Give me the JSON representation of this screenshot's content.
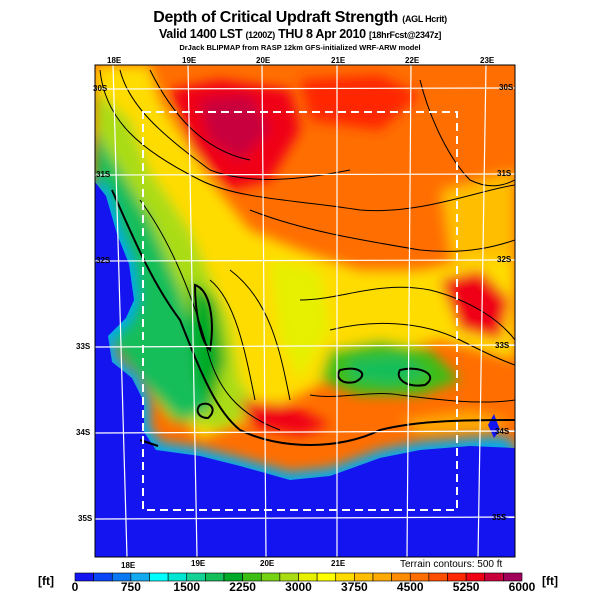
{
  "title": {
    "main": "Depth of Critical Updraft Strength",
    "main_suffix": "(AGL Hcrit)",
    "valid": "Valid 1400 LST",
    "valid_z": "(1200Z)",
    "valid_date": "THU 8 Apr 2010",
    "forecast": "[18hrFcst@2347z]",
    "model": "DrJack BLIPMAP from RASP 12km GFS-initialized WRF-ARW model"
  },
  "axes": {
    "top_lon": [
      "18E",
      "19E",
      "20E",
      "21E",
      "22E",
      "23E"
    ],
    "bottom_lon": [
      "18E",
      "19E",
      "20E",
      "21E"
    ],
    "left_lat": [
      "30S",
      "31S",
      "32S",
      "33S",
      "34S",
      "35S"
    ],
    "right_lat": [
      "30S",
      "31S",
      "32S",
      "33S",
      "34S",
      "35S"
    ]
  },
  "terrain_note": "Terrain contours: 500 ft",
  "colorbar": {
    "unit_left": "[ft]",
    "unit_right": "[ft]",
    "ticks": [
      "0",
      "750",
      "1500",
      "2250",
      "3000",
      "3750",
      "4500",
      "5250",
      "6000"
    ],
    "range": [
      0,
      6000
    ],
    "step": 250,
    "colors": [
      "#1414f0",
      "#0a46f5",
      "#0a78f0",
      "#14aaf0",
      "#00ffff",
      "#00e6d2",
      "#14d296",
      "#14be5a",
      "#00aa28",
      "#3cbe14",
      "#78d214",
      "#aadc14",
      "#e6f000",
      "#ffff00",
      "#ffdc00",
      "#ffbe00",
      "#ffaa00",
      "#ff8c00",
      "#ff6e00",
      "#ff5000",
      "#ff2800",
      "#f00014",
      "#c8003c",
      "#a0005a"
    ]
  }
}
